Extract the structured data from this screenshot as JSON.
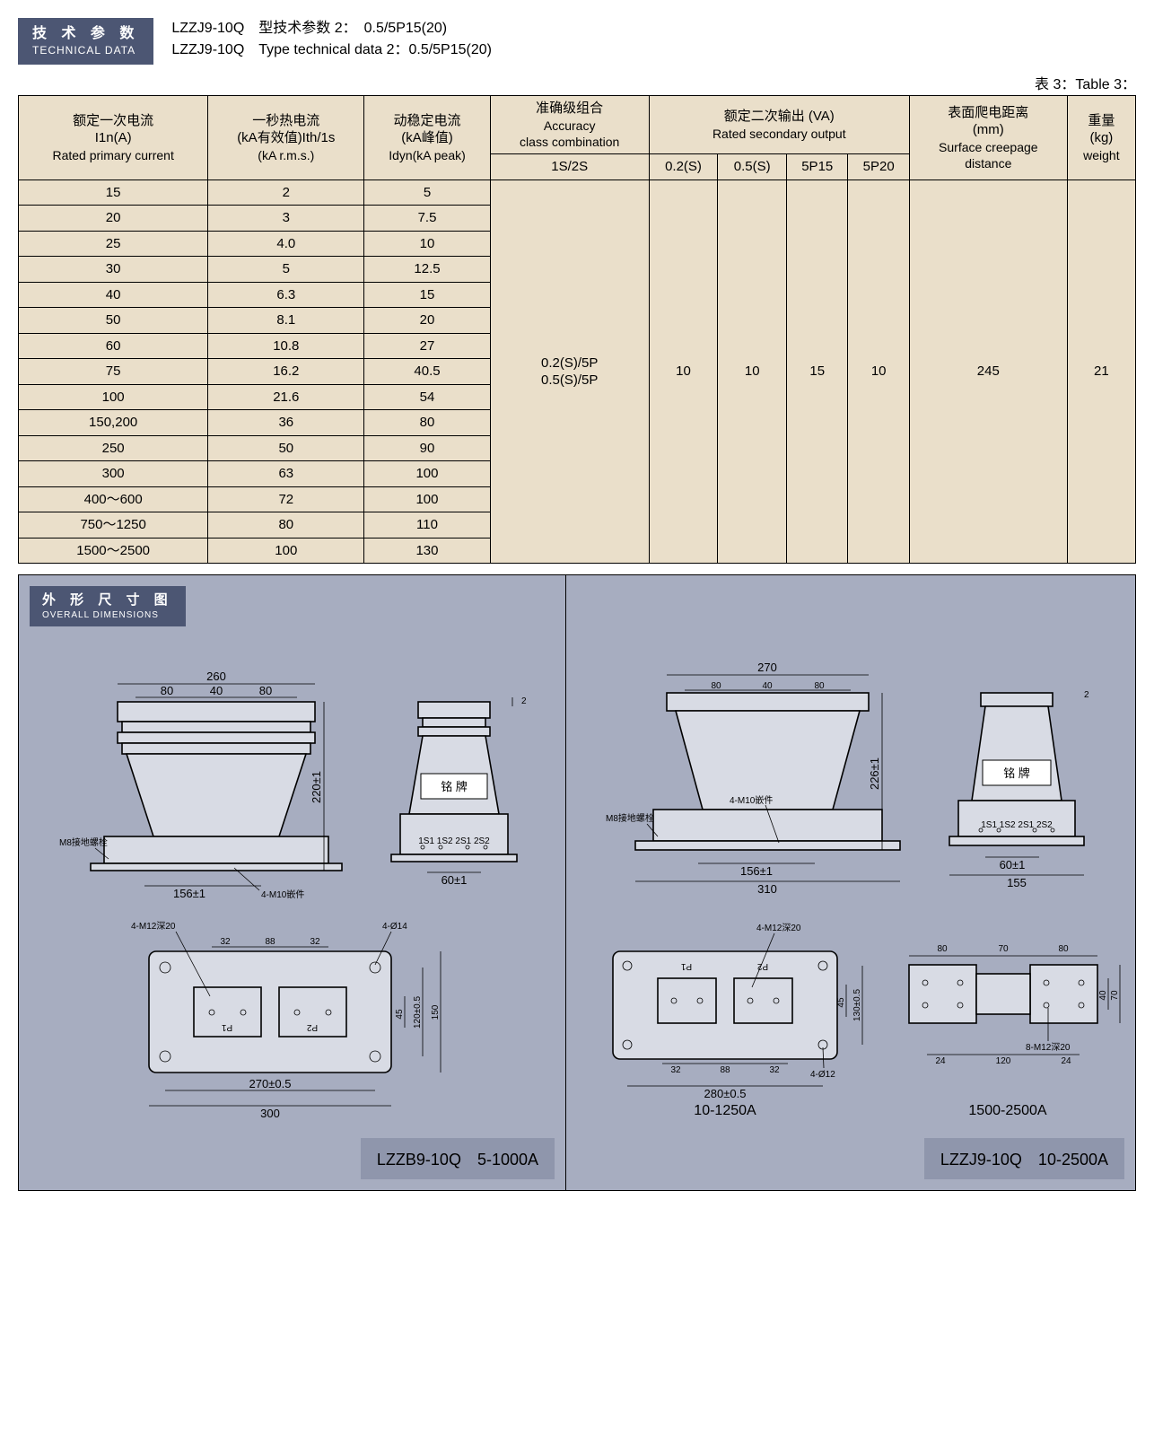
{
  "header": {
    "badge_cn": "技 术 参 数",
    "badge_en": "TECHNICAL DATA",
    "line1": "LZZJ9-10Q　型技术参数 2：　0.5/5P15(20)",
    "line2": "LZZJ9-10Q　Type technical data 2：0.5/5P15(20)",
    "table_label": "表 3：Table 3："
  },
  "table": {
    "columns": {
      "col1_cn": "额定一次电流",
      "col1_sym": "I1n(A)",
      "col1_en": "Rated primary current",
      "col2_cn": "一秒热电流",
      "col2_sym": "(kA有效值)Ith/1s",
      "col2_en": "(kA r.m.s.)",
      "col3_cn": "动稳定电流",
      "col3_sym": "(kA峰值)",
      "col3_en": "Idyn(kA peak)",
      "col4_cn": "准确级组合",
      "col4_en1": "Accuracy",
      "col4_en2": "class combination",
      "col4_sub": "1S/2S",
      "col5_cn": "额定二次输出 (VA)",
      "col5_en": "Rated secondary output",
      "col5a": "0.2(S)",
      "col5b": "0.5(S)",
      "col5c": "5P15",
      "col5d": "5P20",
      "col6_cn": "表面爬电距离",
      "col6_unit": "(mm)",
      "col6_en1": "Surface creepage",
      "col6_en2": "distance",
      "col7_cn": "重量",
      "col7_unit": "(kg)",
      "col7_en": "weight"
    },
    "rows": [
      {
        "a": "15",
        "b": "2",
        "c": "5"
      },
      {
        "a": "20",
        "b": "3",
        "c": "7.5"
      },
      {
        "a": "25",
        "b": "4.0",
        "c": "10"
      },
      {
        "a": "30",
        "b": "5",
        "c": "12.5"
      },
      {
        "a": "40",
        "b": "6.3",
        "c": "15"
      },
      {
        "a": "50",
        "b": "8.1",
        "c": "20"
      },
      {
        "a": "60",
        "b": "10.8",
        "c": "27"
      },
      {
        "a": "75",
        "b": "16.2",
        "c": "40.5"
      },
      {
        "a": "100",
        "b": "21.6",
        "c": "54"
      },
      {
        "a": "150,200",
        "b": "36",
        "c": "80"
      },
      {
        "a": "250",
        "b": "50",
        "c": "90"
      },
      {
        "a": "300",
        "b": "63",
        "c": "100"
      },
      {
        "a": "400～600",
        "b": "72",
        "c": "100"
      },
      {
        "a": "750～1250",
        "b": "80",
        "c": "110"
      },
      {
        "a": "1500～2500",
        "b": "100",
        "c": "130"
      }
    ],
    "merged": {
      "accuracy1": "0.2(S)/5P",
      "accuracy2": "0.5(S)/5P",
      "v02s": "10",
      "v05s": "10",
      "v5p15": "15",
      "v5p20": "10",
      "creepage": "245",
      "weight": "21"
    }
  },
  "dims": {
    "badge_cn": "外 形 尺 寸 图",
    "badge_en": "OVERALL DIMENSIONS",
    "left": {
      "caption": "LZZB9-10Q　5-1000A",
      "front": {
        "w260": "260",
        "w80a": "80",
        "w40": "40",
        "w80b": "80",
        "h220": "220±1",
        "w156": "156±1",
        "note1": "M8接地螺栓",
        "note2": "4-M10嵌件"
      },
      "side": {
        "h2": "2",
        "label": "铭 牌",
        "terms": "1S1 1S2  2S1 2S2",
        "w60": "60±1"
      },
      "top": {
        "note1": "4-M12深20",
        "note2": "4-Ø14",
        "w32a": "32",
        "w88": "88",
        "w32b": "32",
        "h45": "45",
        "h120": "120±0.5",
        "h150": "150",
        "w270": "270±0.5",
        "w300": "300",
        "p1": "P1",
        "p2": "P2"
      }
    },
    "right": {
      "caption": "LZZJ9-10Q　10-2500A",
      "front": {
        "w270": "270",
        "w80a": "80",
        "w40": "40",
        "w80b": "80",
        "h226": "226±1",
        "w156": "156±1",
        "w310": "310",
        "note1": "M8接地螺栓",
        "note2": "4-M10嵌件"
      },
      "side": {
        "h2": "2",
        "label": "铭 牌",
        "terms": "1S1 1S2 2S1 2S2",
        "w60": "60±1",
        "w155": "155"
      },
      "topA": {
        "caption": "10-1250A",
        "note1": "4-M12深20",
        "note2": "4-Ø12",
        "w32a": "32",
        "w88": "88",
        "w32b": "32",
        "h45": "45",
        "h130": "130±0.5",
        "w280": "280±0.5",
        "p1": "P1",
        "p2": "P2"
      },
      "topB": {
        "caption": "1500-2500A",
        "w80a": "80",
        "w70": "70",
        "w80b": "80",
        "h40": "40",
        "h70": "70",
        "w24a": "24",
        "w120": "120",
        "w24b": "24",
        "note": "8-M12深20"
      }
    }
  }
}
